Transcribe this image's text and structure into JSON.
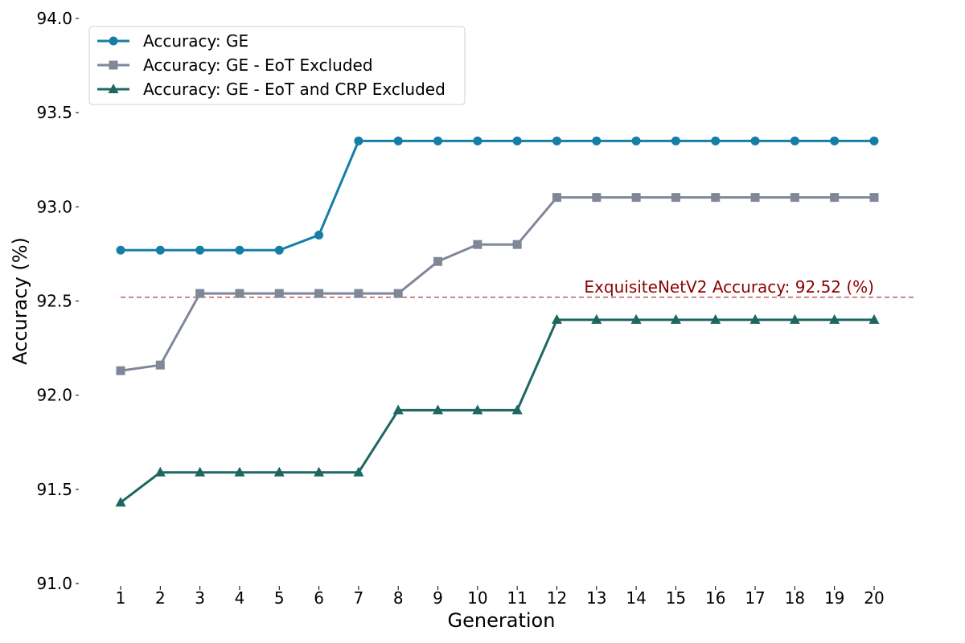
{
  "chart_data": {
    "type": "line",
    "title": "",
    "xlabel": "Generation",
    "ylabel": "Accuracy (%)",
    "x": [
      1,
      2,
      3,
      4,
      5,
      6,
      7,
      8,
      9,
      10,
      11,
      12,
      13,
      14,
      15,
      16,
      17,
      18,
      19,
      20
    ],
    "x_tick_labels": [
      "1",
      "2",
      "3",
      "4",
      "5",
      "6",
      "7",
      "8",
      "9",
      "10",
      "11",
      "12",
      "13",
      "14",
      "15",
      "16",
      "17",
      "18",
      "19",
      "20"
    ],
    "ylim": [
      91.0,
      94.0
    ],
    "y_ticks": [
      91.0,
      91.5,
      92.0,
      92.5,
      93.0,
      93.5,
      94.0
    ],
    "y_tick_labels": [
      "91.0",
      "91.5",
      "92.0",
      "92.5",
      "93.0",
      "93.5",
      "94.0"
    ],
    "grid": false,
    "legend_position": "top-left",
    "series": [
      {
        "name": "Accuracy: GE",
        "marker": "circle",
        "color": "#157ea6",
        "values": [
          92.77,
          92.77,
          92.77,
          92.77,
          92.77,
          92.85,
          93.35,
          93.35,
          93.35,
          93.35,
          93.35,
          93.35,
          93.35,
          93.35,
          93.35,
          93.35,
          93.35,
          93.35,
          93.35,
          93.35
        ]
      },
      {
        "name": "Accuracy: GE - EoT Excluded",
        "marker": "square",
        "color": "#7f8799",
        "values": [
          92.13,
          92.16,
          92.54,
          92.54,
          92.54,
          92.54,
          92.54,
          92.54,
          92.71,
          92.8,
          92.8,
          93.05,
          93.05,
          93.05,
          93.05,
          93.05,
          93.05,
          93.05,
          93.05,
          93.05
        ]
      },
      {
        "name": "Accuracy: GE - EoT and CRP Excluded",
        "marker": "triangle",
        "color": "#1e6660",
        "values": [
          91.43,
          91.59,
          91.59,
          91.59,
          91.59,
          91.59,
          91.59,
          91.92,
          91.92,
          91.92,
          91.92,
          92.4,
          92.4,
          92.4,
          92.4,
          92.4,
          92.4,
          92.4,
          92.4,
          92.4
        ]
      }
    ],
    "reference_line": {
      "value": 92.52,
      "label": "ExquisiteNetV2 Accuracy: 92.52 (%)",
      "color": "#b03a3a",
      "text_color": "#8b0000",
      "style": "dashed"
    }
  }
}
